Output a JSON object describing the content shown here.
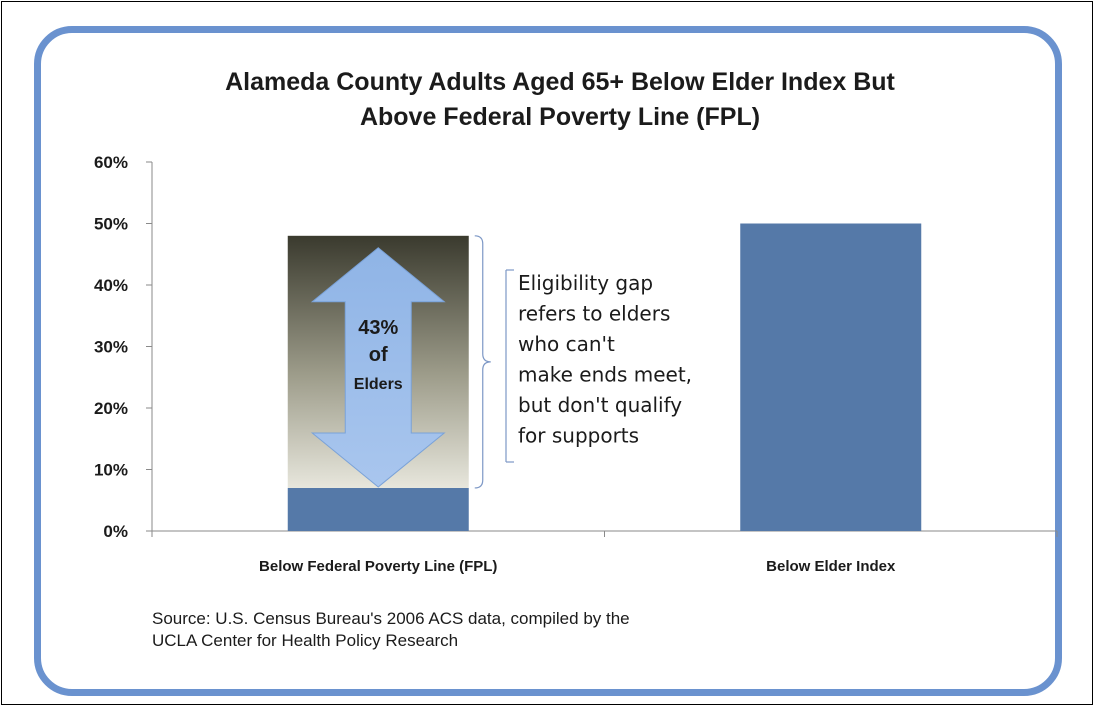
{
  "chart_data": {
    "type": "bar",
    "title_line1": "Alameda County Adults Aged 65+ Below Elder Index But",
    "title_line2": "Above  Federal Poverty Line (FPL)",
    "categories": [
      "Below Federal Poverty Line (FPL)",
      "Below Elder Index"
    ],
    "values": [
      7,
      50
    ],
    "gap_top_value": 48,
    "ylim": [
      0,
      60
    ],
    "yticks": [
      0,
      10,
      20,
      30,
      40,
      50,
      60
    ],
    "ytick_labels": [
      "0%",
      "10%",
      "20%",
      "30%",
      "40%",
      "50%",
      "60%"
    ],
    "grid": false,
    "bar_color": "#5579a8",
    "arrow_label": {
      "line1": "43%",
      "line2": "of",
      "line3": "Elders"
    },
    "annotation_lines": [
      "Eligibility gap",
      "refers to elders",
      "who can't",
      "make ends meet,",
      "but don't qualify",
      "for supports"
    ],
    "source_line1": "Source:  U.S. Census Bureau's 2006  ACS data, compiled by the",
    "source_line2": "UCLA Center  for Health Policy Research"
  }
}
